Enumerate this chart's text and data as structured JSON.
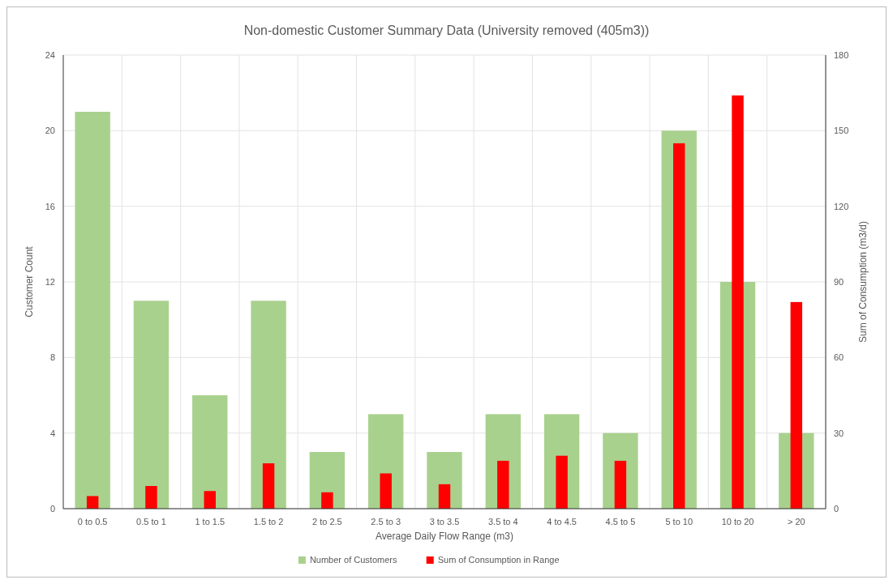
{
  "chart_data": {
    "type": "bar",
    "title": "Non-domestic Customer Summary Data (University removed (405m3))",
    "xlabel": "Average Daily Flow Range (m3)",
    "ylabel": "Customer Count",
    "y2label": "Sum of Consumption (m3/d)",
    "categories": [
      "0 to 0.5",
      "0.5 to 1",
      "1 to 1.5",
      "1.5 to 2",
      "2 to 2.5",
      "2.5 to 3",
      "3 to 3.5",
      "3.5 to 4",
      "4 to 4.5",
      "4.5 to 5",
      "5 to 10",
      "10 to 20",
      "> 20"
    ],
    "series": [
      {
        "name": "Number of Customers",
        "color": "#a9d18e",
        "values": [
          21,
          11,
          6,
          11,
          3,
          5,
          3,
          5,
          5,
          4,
          20,
          12,
          4
        ]
      },
      {
        "name": "Sum of Consumption in Range",
        "color": "#ff0000",
        "axis": "y2",
        "values": [
          5,
          9,
          7,
          18,
          6.5,
          14,
          9.7,
          19,
          21,
          19,
          145,
          164,
          82
        ]
      }
    ],
    "ylim": [
      0,
      24
    ],
    "yticks": [
      0,
      4,
      8,
      12,
      16,
      20,
      24
    ],
    "y2lim": [
      0,
      180
    ],
    "y2ticks": [
      0,
      30,
      60,
      90,
      120,
      150,
      180
    ],
    "grid": true,
    "legend": "bottom"
  }
}
